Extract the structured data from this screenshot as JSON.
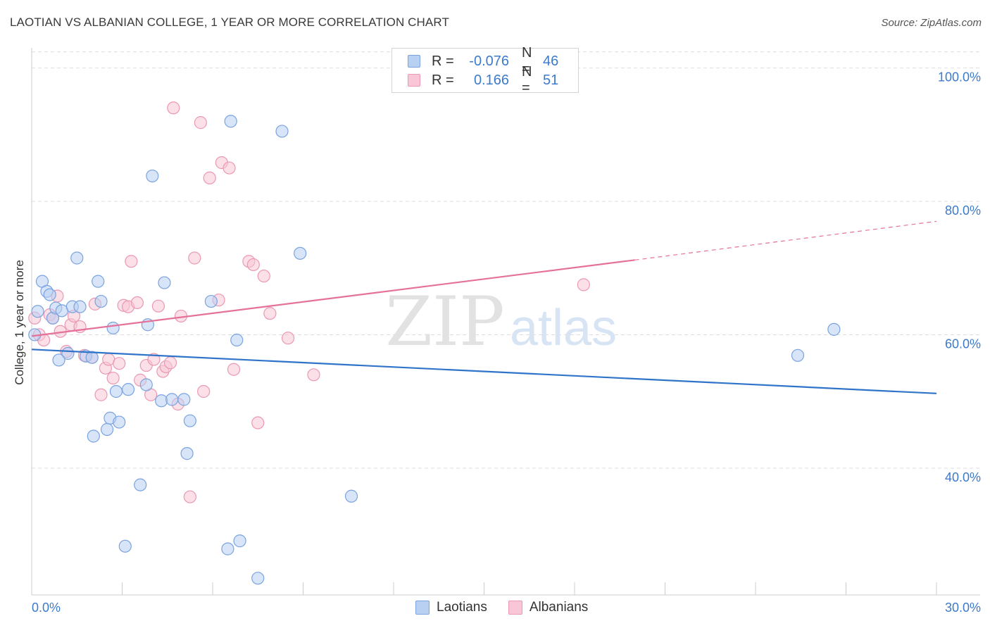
{
  "header": {
    "title": "LAOTIAN VS ALBANIAN COLLEGE, 1 YEAR OR MORE CORRELATION CHART",
    "source": "Source: ZipAtlas.com"
  },
  "watermark": {
    "zip": "ZIP",
    "atlas": "atlas"
  },
  "legend": {
    "rows": [
      {
        "r_label": "R =",
        "r_value": "-0.076",
        "n_label": "N =",
        "n_value": "46"
      },
      {
        "r_label": "R =",
        "r_value": "0.166",
        "n_label": "N =",
        "n_value": "51"
      }
    ]
  },
  "bottom_legend": {
    "laotians": "Laotians",
    "albanians": "Albanians"
  },
  "colors": {
    "laotian_fill": "#b8d0f2",
    "laotian_stroke": "#7aa3df",
    "laotian_line": "#2f74c9",
    "albanian_fill": "#f8c6d6",
    "albanian_stroke": "#eb98b3",
    "albanian_line": "#e5719a",
    "tick_label": "#3c7acb"
  },
  "chart_data": {
    "type": "scatter",
    "title": "LAOTIAN VS ALBANIAN COLLEGE, 1 YEAR OR MORE CORRELATION CHART",
    "xlabel": "",
    "ylabel": "College, 1 year or more",
    "xlim": [
      0,
      30
    ],
    "ylim": [
      21,
      103
    ],
    "x_tick_labels": [
      "0.0%",
      "30.0%"
    ],
    "y_ticks": [
      {
        "value": 100,
        "label": "100.0%"
      },
      {
        "value": 80,
        "label": "80.0%"
      },
      {
        "value": 60,
        "label": "60.0%"
      },
      {
        "value": 40,
        "label": "40.0%"
      }
    ],
    "grid": true,
    "legend_position": "top-center",
    "series": [
      {
        "name": "Laotians",
        "r": -0.076,
        "n": 46,
        "trend": {
          "x0": 0,
          "y0": 57.8,
          "x1": 30,
          "y1": 51.2
        },
        "points": [
          [
            0.1,
            60.0
          ],
          [
            0.2,
            63.5
          ],
          [
            0.35,
            68.0
          ],
          [
            0.5,
            66.5
          ],
          [
            0.6,
            66.0
          ],
          [
            0.7,
            62.5
          ],
          [
            0.8,
            64.0
          ],
          [
            1.0,
            63.6
          ],
          [
            1.2,
            57.2
          ],
          [
            1.35,
            64.2
          ],
          [
            1.5,
            71.5
          ],
          [
            1.6,
            64.2
          ],
          [
            1.8,
            56.8
          ],
          [
            2.0,
            56.6
          ],
          [
            2.2,
            68.0
          ],
          [
            2.3,
            65.0
          ],
          [
            2.5,
            45.8
          ],
          [
            2.6,
            47.5
          ],
          [
            2.7,
            61.0
          ],
          [
            2.8,
            51.5
          ],
          [
            2.9,
            46.9
          ],
          [
            2.05,
            44.8
          ],
          [
            3.1,
            28.3
          ],
          [
            3.2,
            51.8
          ],
          [
            3.6,
            37.5
          ],
          [
            3.8,
            52.5
          ],
          [
            3.85,
            61.5
          ],
          [
            4.0,
            83.8
          ],
          [
            4.3,
            50.1
          ],
          [
            4.4,
            67.8
          ],
          [
            4.65,
            50.3
          ],
          [
            5.05,
            50.3
          ],
          [
            5.15,
            42.2
          ],
          [
            5.25,
            47.1
          ],
          [
            5.95,
            65.0
          ],
          [
            6.5,
            27.9
          ],
          [
            6.6,
            92.0
          ],
          [
            6.8,
            59.2
          ],
          [
            6.9,
            29.1
          ],
          [
            7.5,
            23.5
          ],
          [
            8.3,
            90.5
          ],
          [
            8.9,
            72.2
          ],
          [
            10.6,
            35.8
          ],
          [
            25.4,
            56.9
          ],
          [
            26.6,
            60.8
          ],
          [
            0.9,
            56.2
          ]
        ]
      },
      {
        "name": "Albanians",
        "r": 0.166,
        "n": 51,
        "trend": {
          "x0": 0,
          "y0": 59.8,
          "x1": 20.0,
          "y1": 71.2,
          "x_dash_end": 30,
          "y_dash_end": 77.0
        },
        "points": [
          [
            0.1,
            62.5
          ],
          [
            0.25,
            60.0
          ],
          [
            0.4,
            59.2
          ],
          [
            0.6,
            63.0
          ],
          [
            0.7,
            62.5
          ],
          [
            0.85,
            65.8
          ],
          [
            0.95,
            60.5
          ],
          [
            1.15,
            57.5
          ],
          [
            1.3,
            61.5
          ],
          [
            1.4,
            62.8
          ],
          [
            1.6,
            61.2
          ],
          [
            1.75,
            56.9
          ],
          [
            2.0,
            56.6
          ],
          [
            2.1,
            64.6
          ],
          [
            2.3,
            51.0
          ],
          [
            2.45,
            55.0
          ],
          [
            2.55,
            56.3
          ],
          [
            2.7,
            53.5
          ],
          [
            2.9,
            55.7
          ],
          [
            3.05,
            64.4
          ],
          [
            3.2,
            64.2
          ],
          [
            3.3,
            71.0
          ],
          [
            3.5,
            64.8
          ],
          [
            3.6,
            53.2
          ],
          [
            3.8,
            55.4
          ],
          [
            3.95,
            51.0
          ],
          [
            4.05,
            56.3
          ],
          [
            4.2,
            64.3
          ],
          [
            4.35,
            54.5
          ],
          [
            4.45,
            55.2
          ],
          [
            4.6,
            55.8
          ],
          [
            4.7,
            94.0
          ],
          [
            4.85,
            49.6
          ],
          [
            4.95,
            62.8
          ],
          [
            5.4,
            71.5
          ],
          [
            5.6,
            91.8
          ],
          [
            5.7,
            51.5
          ],
          [
            5.9,
            83.5
          ],
          [
            6.2,
            65.2
          ],
          [
            6.3,
            85.8
          ],
          [
            6.55,
            85.0
          ],
          [
            6.7,
            54.8
          ],
          [
            7.2,
            71.0
          ],
          [
            7.35,
            70.5
          ],
          [
            7.5,
            46.8
          ],
          [
            7.7,
            68.8
          ],
          [
            7.9,
            63.2
          ],
          [
            8.5,
            59.5
          ],
          [
            9.35,
            54.0
          ],
          [
            18.3,
            67.5
          ],
          [
            5.25,
            35.7
          ]
        ]
      }
    ]
  }
}
